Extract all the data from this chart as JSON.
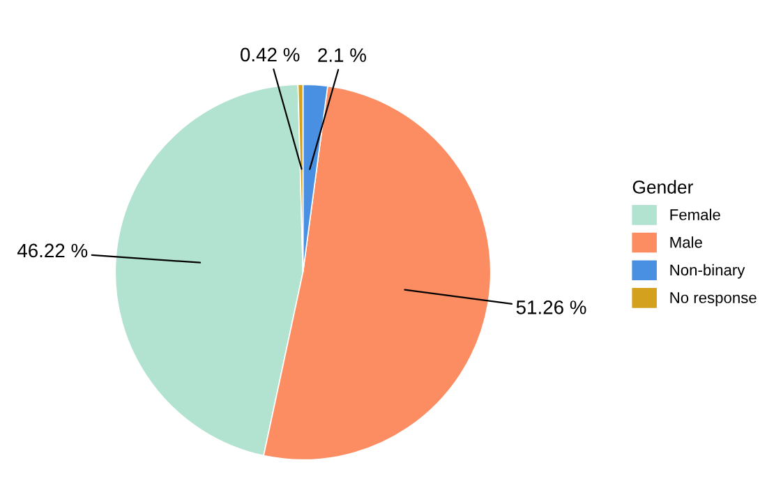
{
  "chart_data": {
    "type": "pie",
    "legend_title": "Gender",
    "categories": [
      "Female",
      "Male",
      "Non-binary",
      "No response"
    ],
    "values": [
      46.22,
      51.26,
      2.1,
      0.42
    ],
    "value_labels": [
      "46.22 %",
      "51.26 %",
      "2.1 %",
      "0.42 %"
    ],
    "colors": [
      "#b2e2d0",
      "#fc8d62",
      "#4a90e2",
      "#d4a11e"
    ],
    "legend": "right"
  }
}
